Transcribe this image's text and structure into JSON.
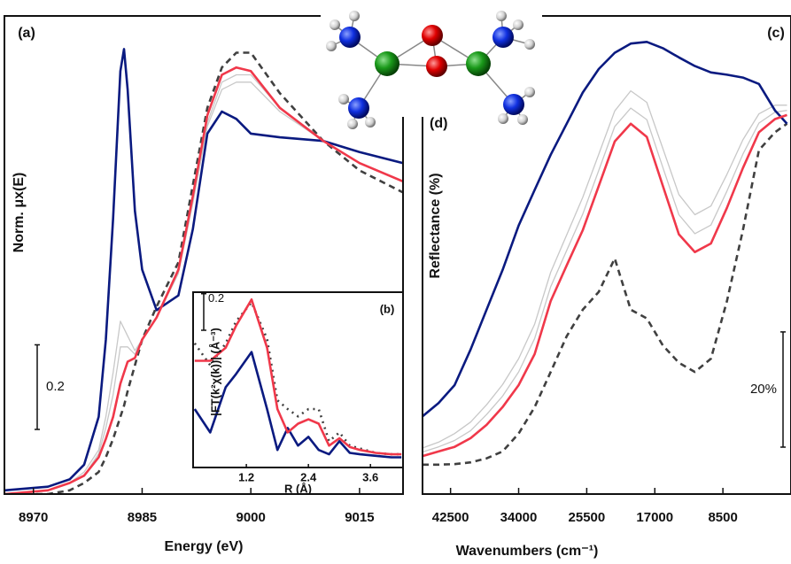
{
  "chart_data": [
    {
      "type": "line",
      "panel_label": "(a)",
      "xlabel": "Energy (eV)",
      "ylabel": "Norm. μx(E)",
      "x": [
        8966,
        8972,
        8975,
        8977,
        8979,
        8980,
        8981,
        8982,
        8982.5,
        8983,
        8984,
        8985,
        8987,
        8990,
        8992,
        8994,
        8996,
        8998,
        9000,
        9004,
        9010,
        9015,
        9021
      ],
      "xlim": [
        8966,
        9021
      ],
      "xticks": [
        8970,
        8985,
        9000,
        9015
      ],
      "ylim": [
        -0.03,
        1.27
      ],
      "scale_bar": 0.2,
      "series": [
        {
          "color": "#c8c8c8",
          "style": "solid",
          "values": [
            -0.03,
            -0.02,
            0.0,
            0.03,
            0.09,
            0.18,
            0.3,
            0.44,
            0.42,
            0.4,
            0.36,
            0.39,
            0.45,
            0.57,
            0.76,
            0.97,
            1.07,
            1.09,
            1.09,
            1.01,
            0.93,
            0.87,
            0.82
          ]
        },
        {
          "color": "#c8c8c8",
          "style": "solid",
          "values": [
            -0.03,
            -0.02,
            0.0,
            0.02,
            0.08,
            0.15,
            0.24,
            0.37,
            0.37,
            0.37,
            0.35,
            0.39,
            0.45,
            0.58,
            0.77,
            0.98,
            1.09,
            1.11,
            1.11,
            1.02,
            0.93,
            0.87,
            0.82
          ]
        },
        {
          "color": "#404040",
          "style": "dashed",
          "values": [
            -0.03,
            -0.03,
            -0.02,
            0.0,
            0.03,
            0.07,
            0.12,
            0.18,
            0.21,
            0.25,
            0.32,
            0.39,
            0.48,
            0.6,
            0.81,
            1.02,
            1.13,
            1.17,
            1.17,
            1.06,
            0.93,
            0.85,
            0.79
          ]
        },
        {
          "color": "#0a1a80",
          "style": "solid",
          "values": [
            -0.02,
            -0.01,
            0.01,
            0.05,
            0.18,
            0.39,
            0.72,
            1.12,
            1.18,
            1.07,
            0.74,
            0.58,
            0.47,
            0.51,
            0.69,
            0.95,
            1.01,
            0.99,
            0.95,
            0.94,
            0.93,
            0.9,
            0.87
          ]
        },
        {
          "color": "#f0384a",
          "style": "solid",
          "values": [
            -0.03,
            -0.02,
            0.0,
            0.02,
            0.07,
            0.12,
            0.18,
            0.27,
            0.3,
            0.33,
            0.34,
            0.39,
            0.45,
            0.58,
            0.78,
            1.0,
            1.11,
            1.13,
            1.12,
            1.02,
            0.93,
            0.87,
            0.82
          ]
        }
      ]
    },
    {
      "type": "line",
      "panel_label": "(b)",
      "xlabel": "R (Å)",
      "ylabel": "|FT(k²χ(k))| (Å⁻³)",
      "x": [
        0.2,
        0.5,
        0.8,
        1.0,
        1.3,
        1.6,
        1.8,
        2.0,
        2.2,
        2.4,
        2.6,
        2.8,
        3.0,
        3.2,
        3.4,
        3.7,
        4.0,
        4.2
      ],
      "xlim": [
        0.17,
        4.23
      ],
      "xticks": [
        1.2,
        2.4,
        3.6
      ],
      "ylim": [
        -0.05,
        1.15
      ],
      "scale_bar": 0.2,
      "series": [
        {
          "color": "#404040",
          "style": "dotted",
          "values": [
            0.8,
            0.65,
            0.8,
            0.95,
            1.08,
            0.83,
            0.41,
            0.35,
            0.3,
            0.35,
            0.35,
            0.13,
            0.19,
            0.1,
            0.08,
            0.05,
            0.04,
            0.04
          ]
        },
        {
          "color": "#0a1a80",
          "style": "solid",
          "values": [
            0.35,
            0.19,
            0.5,
            0.59,
            0.74,
            0.35,
            0.07,
            0.22,
            0.1,
            0.16,
            0.07,
            0.04,
            0.13,
            0.05,
            0.04,
            0.03,
            0.02,
            0.02
          ]
        },
        {
          "color": "#f0384a",
          "style": "solid",
          "values": [
            0.68,
            0.68,
            0.77,
            0.92,
            1.1,
            0.77,
            0.35,
            0.19,
            0.25,
            0.28,
            0.25,
            0.1,
            0.15,
            0.09,
            0.07,
            0.05,
            0.04,
            0.04
          ]
        }
      ]
    },
    {
      "type": "line",
      "panel_label": "(c)",
      "xlabel": "Wavenumbers (cm⁻¹)",
      "ylabel": "Reflectance (%)",
      "x": [
        46000,
        44000,
        42000,
        40000,
        38000,
        36000,
        34000,
        32000,
        30000,
        28000,
        26000,
        24000,
        22000,
        20000,
        18000,
        16000,
        14000,
        12000,
        10000,
        8000,
        6000,
        4000,
        2000,
        500
      ],
      "xlim": [
        46000,
        0
      ],
      "xticks": [
        42500,
        34000,
        25500,
        17000,
        8500
      ],
      "ylim": [
        0,
        83
      ],
      "scale_bar": {
        "value": 20,
        "label": "20%"
      },
      "series": [
        {
          "color": "#c8c8c8",
          "style": "solid",
          "values": [
            8.0,
            9.0,
            10.5,
            12.5,
            15.5,
            19.0,
            23.5,
            29.5,
            38.5,
            45.0,
            51.5,
            59.0,
            66.5,
            70.0,
            68.0,
            60.0,
            52.0,
            48.5,
            50.0,
            55.5,
            61.5,
            66.0,
            67.5,
            67.5
          ]
        },
        {
          "color": "#c8c8c8",
          "style": "solid",
          "values": [
            7.3,
            8.2,
            9.3,
            11.0,
            13.8,
            17.0,
            21.2,
            27.0,
            36.0,
            42.3,
            48.6,
            56.2,
            63.8,
            67.0,
            65.0,
            56.7,
            48.5,
            45.2,
            46.7,
            52.6,
            59.0,
            64.4,
            66.3,
            66.6
          ]
        },
        {
          "color": "#404040",
          "style": "dashed",
          "values": [
            5.1,
            5.1,
            5.2,
            5.5,
            6.2,
            7.4,
            10.5,
            15.1,
            21.2,
            27.4,
            32.0,
            35.1,
            40.9,
            32.0,
            30.5,
            25.8,
            22.8,
            21.2,
            23.5,
            33.5,
            45.8,
            59.7,
            62.8,
            64.3
          ]
        },
        {
          "color": "#0a1a80",
          "style": "solid",
          "values": [
            13.5,
            15.8,
            18.9,
            25.1,
            32.0,
            38.9,
            46.6,
            52.8,
            58.9,
            64.3,
            69.7,
            73.8,
            76.6,
            78.2,
            78.5,
            77.4,
            75.8,
            74.3,
            73.2,
            72.8,
            72.3,
            71.2,
            66.6,
            64.3
          ]
        },
        {
          "color": "#f0384a",
          "style": "solid",
          "values": [
            6.6,
            7.4,
            8.2,
            9.7,
            12.0,
            15.1,
            18.9,
            24.3,
            33.5,
            39.7,
            45.8,
            53.5,
            61.2,
            64.3,
            62.0,
            53.5,
            45.1,
            42.0,
            43.5,
            49.7,
            56.6,
            62.8,
            65.1,
            65.8
          ]
        }
      ]
    }
  ],
  "molecule_label": "(d)"
}
